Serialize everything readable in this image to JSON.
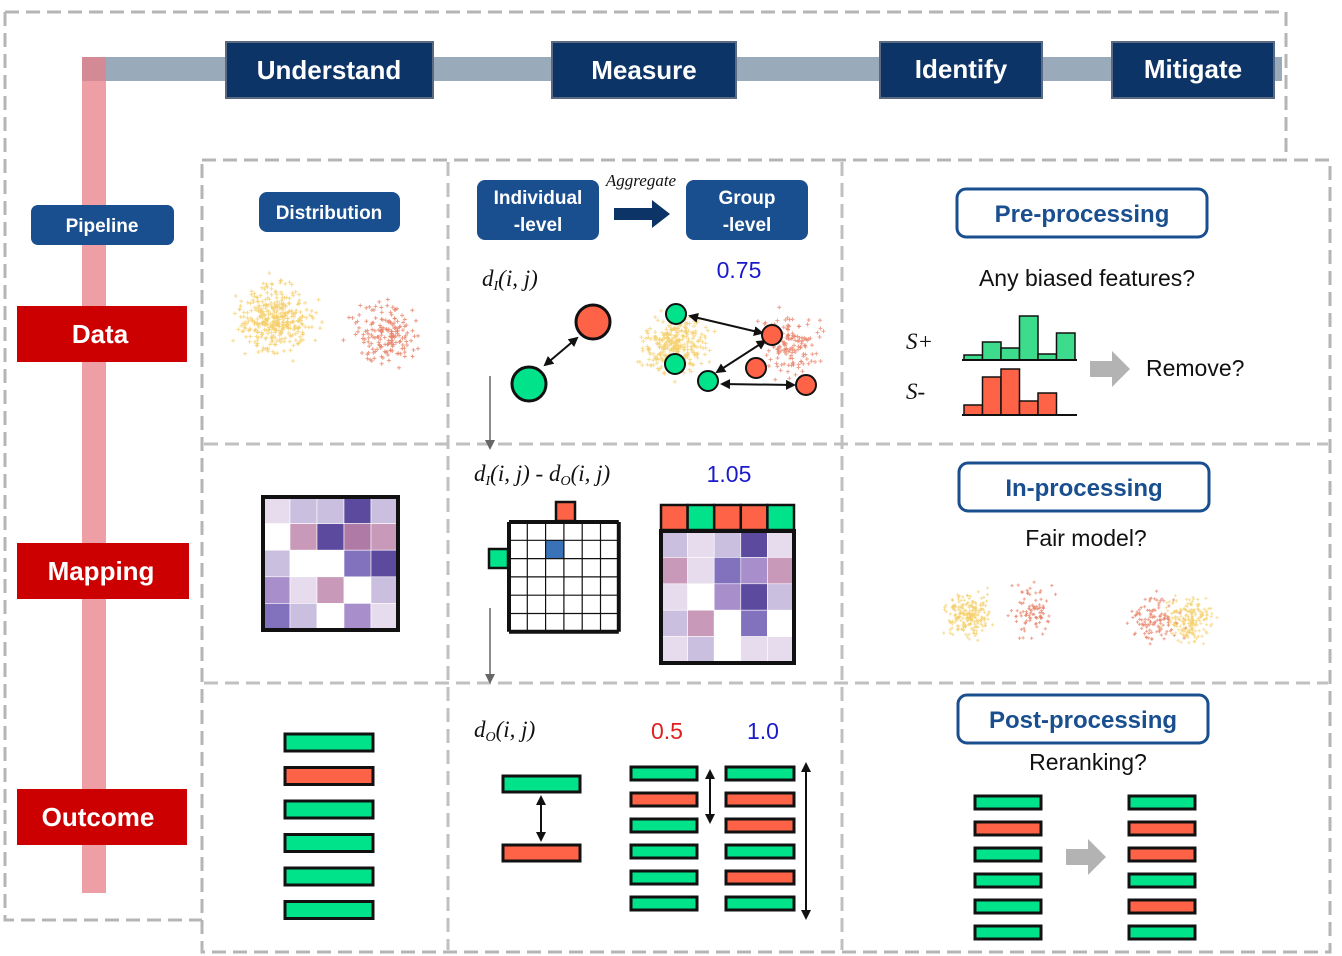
{
  "headers": {
    "understand": "Understand",
    "measure": "Measure",
    "identify": "Identify",
    "mitigate": "Mitigate"
  },
  "pipeline_label": "Pipeline",
  "rows": {
    "data": "Data",
    "mapping": "Mapping",
    "outcome": "Outcome"
  },
  "understand": {
    "distribution_label": "Distribution"
  },
  "measure": {
    "individual_label": [
      "Individual",
      "-level"
    ],
    "group_label": [
      "Group",
      "-level"
    ],
    "aggregate_label": "Aggregate",
    "data_formula": {
      "d": "d",
      "sub": "I",
      "args": "(i, j)"
    },
    "mapping_formula": {
      "d1": "d",
      "sub1": "I",
      "args1": "(i, j)",
      "minus": " - ",
      "d2": "d",
      "sub2": "O",
      "args2": "(i, j)"
    },
    "outcome_formula": {
      "d": "d",
      "sub": "O",
      "args": "(i, j)"
    },
    "data_group_value": "0.75",
    "mapping_group_value": "1.05",
    "outcome_value_red": "0.5",
    "outcome_value_blue": "1.0"
  },
  "mitigate": {
    "pre": {
      "title": "Pre-processing",
      "question": "Any biased features?",
      "s_plus": "S+",
      "s_minus": "S-",
      "action": "Remove?"
    },
    "in": {
      "title": "In-processing",
      "question": "Fair model?"
    },
    "post": {
      "title": "Post-processing",
      "question": "Reranking?"
    }
  },
  "colors": {
    "navy": "#0d3466",
    "pill_blue": "#1a4f8f",
    "row_red": "#cc0000",
    "green": "#00e38a",
    "red": "#ff6347",
    "value_blue": "#1a1acc",
    "value_red": "#e02020"
  }
}
